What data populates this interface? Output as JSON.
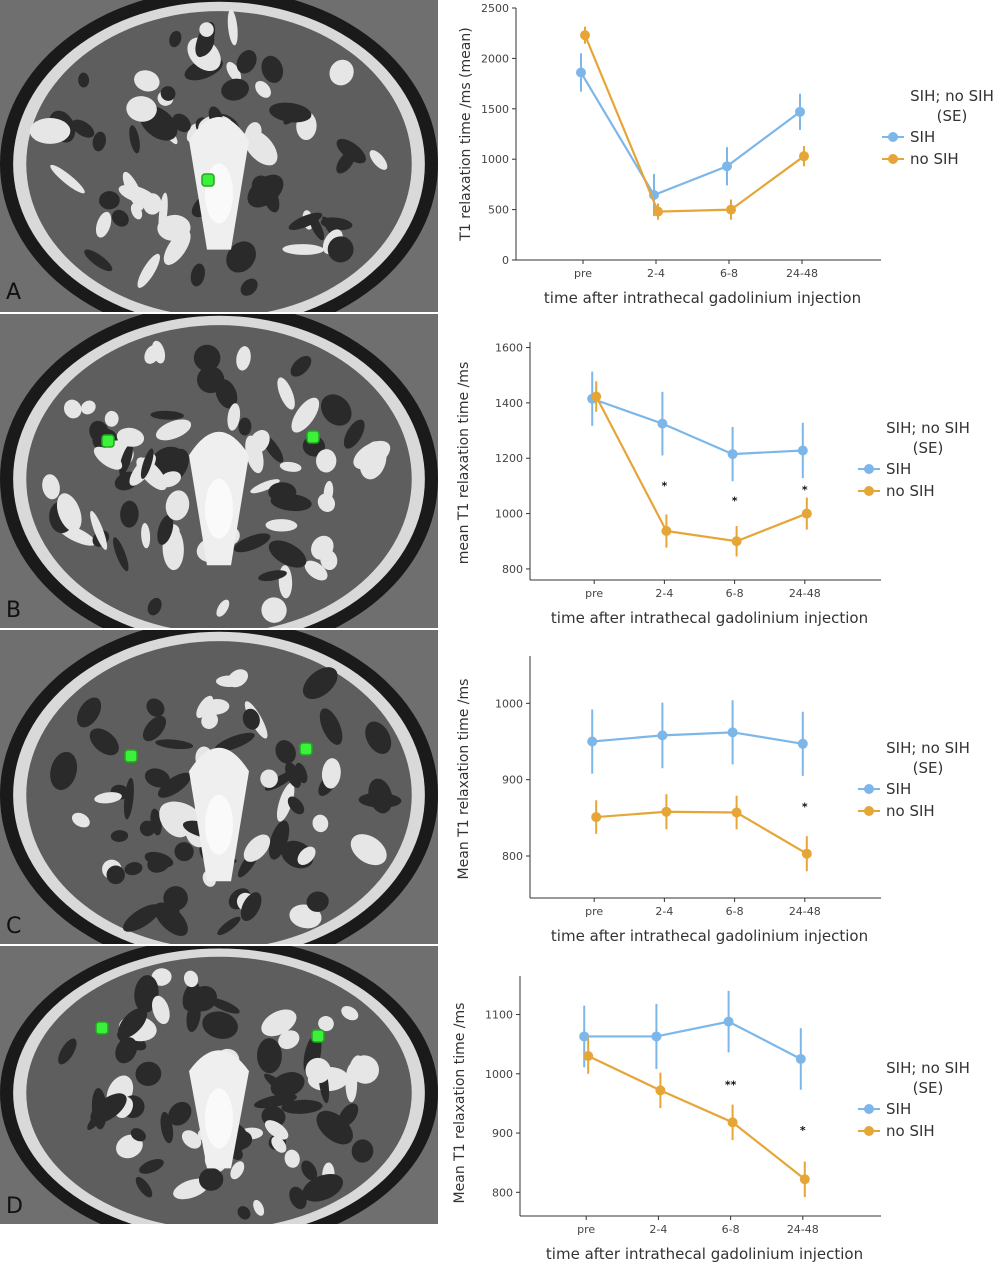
{
  "colors": {
    "sih": "#7db7ea",
    "no_sih": "#e6a637",
    "roi": "#3cf03c",
    "axis": "#333333"
  },
  "panels": [
    {
      "letter": "A",
      "top": 0,
      "height": 312,
      "rois": [
        [
          208,
          180
        ]
      ]
    },
    {
      "letter": "B",
      "top": 314,
      "height": 314,
      "rois": [
        [
          108,
          441
        ],
        [
          313,
          437
        ]
      ]
    },
    {
      "letter": "C",
      "top": 630,
      "height": 314,
      "rois": [
        [
          131,
          756
        ],
        [
          306,
          749
        ]
      ]
    },
    {
      "letter": "D",
      "top": 946,
      "height": 334,
      "rois": [
        [
          102,
          1028
        ],
        [
          318,
          1036
        ]
      ]
    }
  ],
  "legend": {
    "title_line1": "SIH; no SIH",
    "title_line2": "(SE)",
    "items": [
      "SIH",
      "no SIH"
    ]
  },
  "chart_data": [
    {
      "type": "line",
      "panel": "A",
      "categories": [
        "pre",
        "2-4",
        "6-8",
        "24-48"
      ],
      "xlabel": "time after intrathecal gadolinium injection",
      "ylabel": "T1 relaxation time /ms (mean)",
      "ylim": [
        0,
        2500
      ],
      "yticks": [
        0,
        500,
        1000,
        1500,
        2000,
        2500
      ],
      "series": [
        {
          "name": "SIH",
          "values": [
            1860,
            645,
            930,
            1470
          ],
          "err": [
            190,
            210,
            190,
            180
          ]
        },
        {
          "name": "no SIH",
          "values": [
            2230,
            480,
            500,
            1030
          ],
          "err": [
            85,
            80,
            100,
            100
          ]
        }
      ],
      "annotations": []
    },
    {
      "type": "line",
      "panel": "B",
      "categories": [
        "pre",
        "2-4",
        "6-8",
        "24-48"
      ],
      "xlabel": "time after intrathecal gadolinium injection",
      "ylabel": "mean T1 relaxation time /ms",
      "ylim": [
        760,
        1620
      ],
      "yticks": [
        800,
        1000,
        1200,
        1400,
        1600
      ],
      "series": [
        {
          "name": "SIH",
          "values": [
            1415,
            1325,
            1215,
            1228
          ],
          "err": [
            98,
            115,
            98,
            100
          ]
        },
        {
          "name": "no SIH",
          "values": [
            1423,
            937,
            900,
            1000
          ],
          "err": [
            55,
            60,
            55,
            58
          ]
        }
      ],
      "annotations": [
        {
          "category": "2-4",
          "y": 1105,
          "text": "*"
        },
        {
          "category": "6-8",
          "y": 1050,
          "text": "*"
        },
        {
          "category": "24-48",
          "y": 1090,
          "text": "*"
        }
      ]
    },
    {
      "type": "line",
      "panel": "C",
      "categories": [
        "pre",
        "2-4",
        "6-8",
        "24-48"
      ],
      "xlabel": "time after intrathecal gadolinium injection",
      "ylabel": "Mean T1 relaxation time /ms",
      "ylim": [
        745,
        1062
      ],
      "yticks": [
        800,
        900,
        1000
      ],
      "series": [
        {
          "name": "SIH",
          "values": [
            950,
            958,
            962,
            947
          ],
          "err": [
            42,
            43,
            42,
            42
          ]
        },
        {
          "name": "no SIH",
          "values": [
            851,
            858,
            857,
            803
          ],
          "err": [
            22,
            23,
            22,
            23
          ]
        }
      ],
      "annotations": [
        {
          "category": "24-48",
          "y": 866,
          "text": "*"
        }
      ]
    },
    {
      "type": "line",
      "panel": "D",
      "categories": [
        "pre",
        "2-4",
        "6-8",
        "24-48"
      ],
      "xlabel": "time after intrathecal gadolinium injection",
      "ylabel": "Mean T1 relaxation time /ms",
      "ylim": [
        760,
        1165
      ],
      "yticks": [
        800,
        900,
        1000,
        1100
      ],
      "series": [
        {
          "name": "SIH",
          "values": [
            1063,
            1063,
            1088,
            1025
          ],
          "err": [
            52,
            55,
            52,
            52
          ]
        },
        {
          "name": "no SIH",
          "values": [
            1030,
            972,
            918,
            822
          ],
          "err": [
            30,
            30,
            30,
            30
          ]
        }
      ],
      "annotations": [
        {
          "category": "6-8",
          "y": 984,
          "text": "**"
        },
        {
          "category": "24-48",
          "y": 907,
          "text": "*"
        }
      ]
    }
  ]
}
